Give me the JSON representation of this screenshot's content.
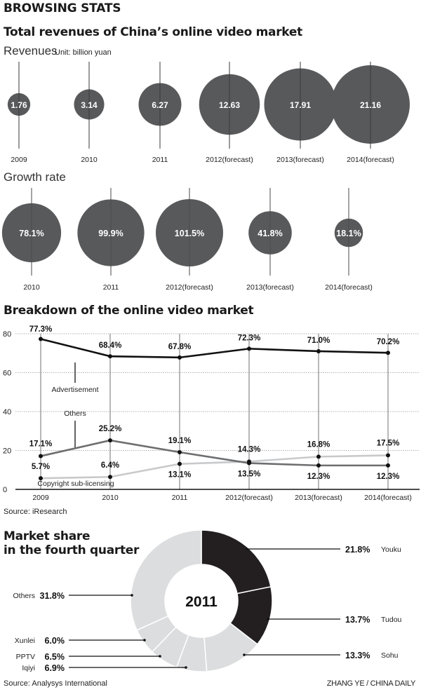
{
  "header": {
    "title": "BROWSING STATS"
  },
  "section1": {
    "title": "Total revenues of China’s online video market",
    "revenues_label": "Revenues",
    "unit_label": "Unit: billion yuan",
    "growth_label": "Growth rate"
  },
  "section2": {
    "title": "Breakdown of the online video market",
    "source": "Source: iResearch",
    "series_labels": {
      "advertisement": "Advertisement",
      "others": "Others",
      "copyright": "Copyright sub-licensing"
    }
  },
  "section3": {
    "title_line1": "Market share",
    "title_line2": "in the fourth quarter",
    "center_label": "2011",
    "source": "Source: Analysys International",
    "credit": "ZHANG YE / CHINA DAILY"
  },
  "chart_data": [
    {
      "type": "bubble",
      "title": "Revenues",
      "unit": "billion yuan",
      "categories": [
        "2009",
        "2010",
        "2011",
        "2012(forecast)",
        "2013(forecast)",
        "2014(forecast)"
      ],
      "values": [
        1.76,
        3.14,
        6.27,
        12.63,
        17.91,
        21.16
      ],
      "labels": [
        "1.76",
        "3.14",
        "6.27",
        "12.63",
        "17.91",
        "21.16"
      ],
      "color": "#58595b"
    },
    {
      "type": "bubble",
      "title": "Growth rate",
      "categories": [
        "2010",
        "2011",
        "2012(forecast)",
        "2013(forecast)",
        "2014(forecast)"
      ],
      "values": [
        78.1,
        99.9,
        101.5,
        41.8,
        18.1
      ],
      "labels": [
        "78.1%",
        "99.9%",
        "101.5%",
        "41.8%",
        "18.1%"
      ],
      "color": "#58595b"
    },
    {
      "type": "line",
      "title": "Breakdown of the online video market",
      "x": [
        "2009",
        "2010",
        "2011",
        "2012(forecast)",
        "2013(forecast)",
        "2014(forecast)"
      ],
      "ylim": [
        0,
        80
      ],
      "yticks": [
        0,
        20,
        40,
        60,
        80
      ],
      "grid": true,
      "series": [
        {
          "name": "Advertisement",
          "values": [
            77.3,
            68.4,
            67.8,
            72.3,
            71.0,
            70.2
          ],
          "labels": [
            "77.3%",
            "68.4%",
            "67.8%",
            "72.3%",
            "71.0%",
            "70.2%"
          ],
          "color": "#111111"
        },
        {
          "name": "Others",
          "values": [
            17.1,
            25.2,
            19.1,
            13.5,
            12.3,
            12.3
          ],
          "labels": [
            "17.1%",
            "25.2%",
            "19.1%",
            "13.5%",
            "12.3%",
            "12.3%"
          ],
          "color": "#6d6e70"
        },
        {
          "name": "Copyright sub-licensing",
          "values": [
            5.7,
            6.4,
            13.1,
            14.3,
            16.8,
            17.5
          ],
          "labels": [
            "5.7%",
            "6.4%",
            "13.1%",
            "14.3%",
            "16.8%",
            "17.5%"
          ],
          "color": "#c8c9cb"
        }
      ],
      "source": "Source: iResearch"
    },
    {
      "type": "pie",
      "title": "Market share in the fourth quarter",
      "center_label": "2011",
      "slices": [
        {
          "name": "Youku",
          "value": 21.8,
          "label": "21.8%",
          "color": "#231f20"
        },
        {
          "name": "Tudou",
          "value": 13.7,
          "label": "13.7%",
          "color": "#231f20"
        },
        {
          "name": "Sohu",
          "value": 13.3,
          "label": "13.3%",
          "color": "#dcddde"
        },
        {
          "name": "Iqiyi",
          "value": 6.9,
          "label": "6.9%",
          "color": "#dcddde"
        },
        {
          "name": "PPTV",
          "value": 6.5,
          "label": "6.5%",
          "color": "#dcddde"
        },
        {
          "name": "Xunlei",
          "value": 6.0,
          "label": "6.0%",
          "color": "#dcddde"
        },
        {
          "name": "Others",
          "value": 31.8,
          "label": "31.8%",
          "color": "#dcddde"
        }
      ],
      "source": "Source: Analysys International"
    }
  ]
}
